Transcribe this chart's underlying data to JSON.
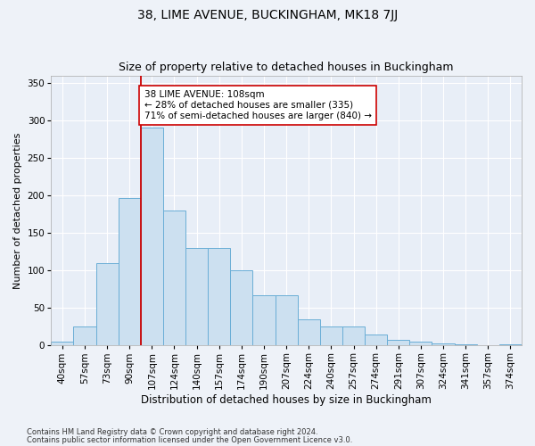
{
  "title": "38, LIME AVENUE, BUCKINGHAM, MK18 7JJ",
  "subtitle": "Size of property relative to detached houses in Buckingham",
  "xlabel": "Distribution of detached houses by size in Buckingham",
  "ylabel": "Number of detached properties",
  "footnote1": "Contains HM Land Registry data © Crown copyright and database right 2024.",
  "footnote2": "Contains public sector information licensed under the Open Government Licence v3.0.",
  "categories": [
    "40sqm",
    "57sqm",
    "73sqm",
    "90sqm",
    "107sqm",
    "124sqm",
    "140sqm",
    "157sqm",
    "174sqm",
    "190sqm",
    "207sqm",
    "224sqm",
    "240sqm",
    "257sqm",
    "274sqm",
    "291sqm",
    "307sqm",
    "324sqm",
    "341sqm",
    "357sqm",
    "374sqm"
  ],
  "values": [
    5,
    25,
    110,
    197,
    290,
    180,
    130,
    130,
    100,
    67,
    67,
    35,
    25,
    25,
    15,
    8,
    5,
    3,
    2,
    1,
    2
  ],
  "bar_color": "#cce0f0",
  "bar_edge_color": "#6aaed6",
  "bar_width": 1.0,
  "property_line_index": 4,
  "property_line_color": "#cc0000",
  "annotation_text": "38 LIME AVENUE: 108sqm\n← 28% of detached houses are smaller (335)\n71% of semi-detached houses are larger (840) →",
  "annotation_box_facecolor": "#ffffff",
  "annotation_box_edgecolor": "#cc0000",
  "ylim": [
    0,
    360
  ],
  "yticks": [
    0,
    50,
    100,
    150,
    200,
    250,
    300,
    350
  ],
  "plot_bg_color": "#e8eef7",
  "fig_bg_color": "#eef2f8",
  "grid_color": "#ffffff",
  "title_fontsize": 10,
  "subtitle_fontsize": 9,
  "xlabel_fontsize": 8.5,
  "ylabel_fontsize": 8,
  "tick_fontsize": 7.5,
  "annotation_fontsize": 7.5,
  "footnote_fontsize": 6.0
}
